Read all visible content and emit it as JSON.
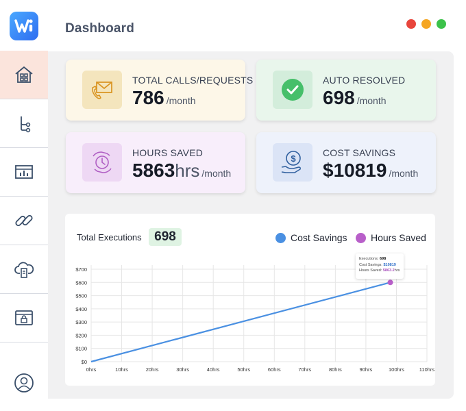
{
  "header": {
    "title": "Dashboard"
  },
  "colors": {
    "accent_blue": "#4a90e2",
    "hours_purple": "#b85fc9",
    "window_close": "#e8453c",
    "window_min": "#f5a623",
    "window_max": "#3cc24a"
  },
  "sidebar": {
    "items": [
      {
        "icon": "home-icon",
        "active": true
      },
      {
        "icon": "workflow-icon",
        "active": false
      },
      {
        "icon": "report-icon",
        "active": false
      },
      {
        "icon": "link-icon",
        "active": false
      },
      {
        "icon": "cloud-server-icon",
        "active": false
      },
      {
        "icon": "browser-lock-icon",
        "active": false
      }
    ],
    "avatar_icon": "user-icon"
  },
  "cards": [
    {
      "label": "TOTAL CALLS/REQUESTS",
      "value": "786",
      "unit": "/month",
      "icon": "email-phone-icon",
      "bg": "#fdf7e8",
      "icon_bg": "#f4e5bd"
    },
    {
      "label": "AUTO RESOLVED",
      "value": "698",
      "unit": "/month",
      "icon": "check-circle-icon",
      "bg": "#e9f6ec",
      "icon_bg": "#d3eddb"
    },
    {
      "label": "HOURS SAVED",
      "value": "5863",
      "value_suffix": "hrs",
      "unit": "/month",
      "icon": "time-hands-icon",
      "bg": "#f8eefb",
      "icon_bg": "#eed8f4"
    },
    {
      "label": "COST SAVINGS",
      "value": "$10819",
      "unit": "/month",
      "icon": "dollar-hand-icon",
      "bg": "#eef2fb",
      "icon_bg": "#dbe4f6"
    }
  ],
  "executions": {
    "label": "Total Executions",
    "value": "698"
  },
  "legend": [
    {
      "name": "Cost Savings",
      "color": "#4a90e2"
    },
    {
      "name": "Hours Saved",
      "color": "#b85fc9"
    }
  ],
  "tooltip": {
    "executions_label": "Executions:",
    "executions_value": "698",
    "cost_label": "Cost Savings:",
    "cost_value": "$10819",
    "hours_label": "Hours Saved:",
    "hours_value": "5863.2",
    "hours_unit": "hrs"
  },
  "chart_data": {
    "type": "line",
    "x_ticks": [
      "0hrs",
      "10hrs",
      "20hrs",
      "30hrs",
      "40hrs",
      "50hrs",
      "60hrs",
      "70hrs",
      "80hrs",
      "90hrs",
      "100hrs",
      "110hrs"
    ],
    "y_ticks": [
      "$0",
      "$100",
      "$200",
      "$300",
      "$400",
      "$500",
      "$600",
      "$700"
    ],
    "xlim": [
      0,
      110
    ],
    "ylim": [
      0,
      700
    ],
    "grid": true,
    "series": [
      {
        "name": "Cost Savings",
        "points": [
          [
            0,
            0
          ],
          [
            98,
            600
          ]
        ]
      }
    ],
    "marker": {
      "series": "Hours Saved",
      "x": 98,
      "y": 600
    }
  }
}
